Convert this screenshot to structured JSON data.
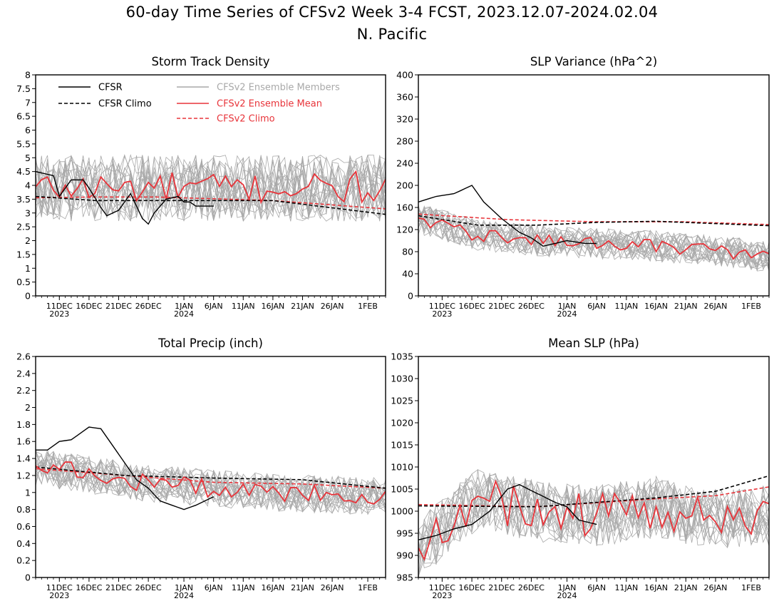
{
  "figure": {
    "title_line1": "60-day Time Series of CFSv2 Week 3-4 FCST, 2023.12.07-2024.02.04",
    "title_line2": "N. Pacific"
  },
  "legend": {
    "cfsr": "CFSR",
    "cfsr_climo": "CFSR Climo",
    "members": "CFSv2 Ensemble Members",
    "ens_mean": "CFSv2 Ensemble Mean",
    "cfsv2_climo": "CFSv2 Climo"
  },
  "colors": {
    "cfsr": "#000000",
    "member": "#a9a9a9",
    "ens_mean": "#e8343a",
    "cfsv2_climo": "#e8343a"
  },
  "x_axis": {
    "ticks": [
      {
        "day": 4,
        "label": "11DEC",
        "sub": "2023"
      },
      {
        "day": 9,
        "label": "16DEC",
        "sub": ""
      },
      {
        "day": 14,
        "label": "21DEC",
        "sub": ""
      },
      {
        "day": 19,
        "label": "26DEC",
        "sub": ""
      },
      {
        "day": 25,
        "label": "1JAN",
        "sub": "2024"
      },
      {
        "day": 30,
        "label": "6JAN",
        "sub": ""
      },
      {
        "day": 35,
        "label": "11JAN",
        "sub": ""
      },
      {
        "day": 40,
        "label": "16JAN",
        "sub": ""
      },
      {
        "day": 45,
        "label": "21JAN",
        "sub": ""
      },
      {
        "day": 50,
        "label": "26JAN",
        "sub": ""
      },
      {
        "day": 56,
        "label": "1FEB",
        "sub": ""
      }
    ]
  },
  "chart_data": [
    {
      "id": "storm",
      "type": "line",
      "title": "Storm Track Density",
      "ylim": [
        0,
        8
      ],
      "yticks": [
        "0",
        "0.5",
        "1",
        "1.5",
        "2",
        "2.5",
        "3",
        "3.5",
        "4",
        "4.5",
        "5",
        "5.5",
        "6",
        "6.5",
        "7",
        "7.5",
        "8"
      ],
      "x_start": "2023-12-07",
      "x_end": "2024-02-04",
      "cfsr_days": 31,
      "cfsr_anchors": [
        [
          0,
          4.5
        ],
        [
          3,
          4.35
        ],
        [
          4,
          3.6
        ],
        [
          6,
          4.2
        ],
        [
          8,
          4.2
        ],
        [
          9,
          3.9
        ],
        [
          11,
          3.2
        ],
        [
          12,
          2.9
        ],
        [
          14,
          3.1
        ],
        [
          16,
          3.7
        ],
        [
          18,
          2.8
        ],
        [
          19,
          2.6
        ],
        [
          20,
          3.0
        ],
        [
          22,
          3.5
        ],
        [
          24,
          3.6
        ],
        [
          25,
          3.4
        ],
        [
          26,
          3.4
        ],
        [
          27,
          3.25
        ]
      ],
      "cfsr_climo_anchors": [
        [
          0,
          3.6
        ],
        [
          10,
          3.45
        ],
        [
          20,
          3.45
        ],
        [
          40,
          3.45
        ],
        [
          59,
          2.95
        ]
      ],
      "cfsv2_climo_anchors": [
        [
          0,
          3.55
        ],
        [
          10,
          3.58
        ],
        [
          20,
          3.58
        ],
        [
          40,
          3.45
        ],
        [
          59,
          3.15
        ]
      ],
      "ens_mean_base": 3.9,
      "ens_mean_amp": 0.6,
      "member_base": 3.9,
      "member_amp": 1.2,
      "member_min": 0.3,
      "member_max": 6.7
    },
    {
      "id": "slpvar",
      "type": "line",
      "title": "SLP Variance (hPa^2)",
      "ylim": [
        0,
        400
      ],
      "yticks": [
        "0",
        "40",
        "80",
        "120",
        "160",
        "200",
        "240",
        "280",
        "320",
        "360",
        "400"
      ],
      "x_start": "2023-12-07",
      "x_end": "2024-02-04",
      "cfsr_days": 31,
      "cfsr_anchors": [
        [
          0,
          170
        ],
        [
          3,
          180
        ],
        [
          6,
          185
        ],
        [
          9,
          200
        ],
        [
          11,
          170
        ],
        [
          14,
          140
        ],
        [
          17,
          115
        ],
        [
          19,
          105
        ],
        [
          21,
          90
        ],
        [
          23,
          95
        ],
        [
          25,
          100
        ],
        [
          28,
          95
        ],
        [
          30,
          95
        ]
      ],
      "cfsr_climo_anchors": [
        [
          0,
          145
        ],
        [
          10,
          128
        ],
        [
          20,
          128
        ],
        [
          30,
          133
        ],
        [
          40,
          135
        ],
        [
          59,
          127
        ]
      ],
      "cfsv2_climo_anchors": [
        [
          0,
          148
        ],
        [
          15,
          138
        ],
        [
          30,
          134
        ],
        [
          45,
          134
        ],
        [
          59,
          129
        ]
      ],
      "ens_mean_anchors": [
        [
          0,
          140
        ],
        [
          10,
          110
        ],
        [
          20,
          100
        ],
        [
          30,
          95
        ],
        [
          38,
          92
        ],
        [
          45,
          85
        ],
        [
          52,
          80
        ],
        [
          59,
          70
        ]
      ],
      "ens_mean_amp": 12,
      "member_amp": 28,
      "member_min": 35,
      "member_max": 240
    },
    {
      "id": "precip",
      "type": "line",
      "title": "Total Precip (inch)",
      "ylim": [
        0,
        2.6
      ],
      "yticks": [
        "0",
        "0.2",
        "0.4",
        "0.6",
        "0.8",
        "1",
        "1.2",
        "1.4",
        "1.6",
        "1.8",
        "2",
        "2.2",
        "2.4",
        "2.6"
      ],
      "x_start": "2023-12-07",
      "x_end": "2024-02-04",
      "cfsr_days": 31,
      "cfsr_anchors": [
        [
          0,
          1.5
        ],
        [
          2,
          1.5
        ],
        [
          4,
          1.6
        ],
        [
          6,
          1.62
        ],
        [
          9,
          1.77
        ],
        [
          11,
          1.75
        ],
        [
          13,
          1.55
        ],
        [
          15,
          1.35
        ],
        [
          17,
          1.15
        ],
        [
          19,
          1.05
        ],
        [
          21,
          0.9
        ],
        [
          23,
          0.85
        ],
        [
          25,
          0.8
        ],
        [
          27,
          0.85
        ],
        [
          30,
          0.95
        ]
      ],
      "cfsr_climo_anchors": [
        [
          0,
          1.3
        ],
        [
          15,
          1.2
        ],
        [
          30,
          1.17
        ],
        [
          45,
          1.15
        ],
        [
          59,
          1.05
        ]
      ],
      "cfsv2_climo_anchors": [
        [
          0,
          1.28
        ],
        [
          15,
          1.2
        ],
        [
          30,
          1.12
        ],
        [
          45,
          1.1
        ],
        [
          59,
          1.05
        ]
      ],
      "ens_mean_anchors": [
        [
          0,
          1.3
        ],
        [
          20,
          1.1
        ],
        [
          40,
          1.0
        ],
        [
          59,
          0.95
        ]
      ],
      "ens_mean_amp": 0.12,
      "member_amp": 0.22,
      "member_min": 0.5,
      "member_max": 1.6
    },
    {
      "id": "meanslp",
      "type": "line",
      "title": "Mean SLP (hPa)",
      "ylim": [
        985,
        1035
      ],
      "yticks": [
        "985",
        "990",
        "995",
        "1000",
        "1005",
        "1010",
        "1015",
        "1020",
        "1025",
        "1030",
        "1035"
      ],
      "x_start": "2023-12-07",
      "x_end": "2024-02-04",
      "cfsr_days": 31,
      "cfsr_anchors": [
        [
          0,
          993.5
        ],
        [
          3,
          994.5
        ],
        [
          6,
          996
        ],
        [
          9,
          997
        ],
        [
          12,
          1000
        ],
        [
          15,
          1005
        ],
        [
          17,
          1006
        ],
        [
          20,
          1004
        ],
        [
          23,
          1002
        ],
        [
          25,
          1001
        ],
        [
          27,
          998
        ],
        [
          30,
          997
        ]
      ],
      "cfsr_climo_anchors": [
        [
          0,
          1001.2
        ],
        [
          20,
          1001
        ],
        [
          40,
          1003
        ],
        [
          50,
          1004.5
        ],
        [
          59,
          1008
        ]
      ],
      "cfsv2_climo_anchors": [
        [
          0,
          1001.5
        ],
        [
          20,
          1001
        ],
        [
          40,
          1002.8
        ],
        [
          50,
          1003.5
        ],
        [
          59,
          1005.5
        ]
      ],
      "ens_mean_anchors": [
        [
          0,
          991
        ],
        [
          10,
          1003
        ],
        [
          20,
          1000
        ],
        [
          30,
          999
        ],
        [
          40,
          1001
        ],
        [
          50,
          998
        ],
        [
          59,
          999
        ]
      ],
      "ens_mean_amp": 5,
      "member_amp": 7,
      "member_min": 985,
      "member_max": 1021
    }
  ]
}
